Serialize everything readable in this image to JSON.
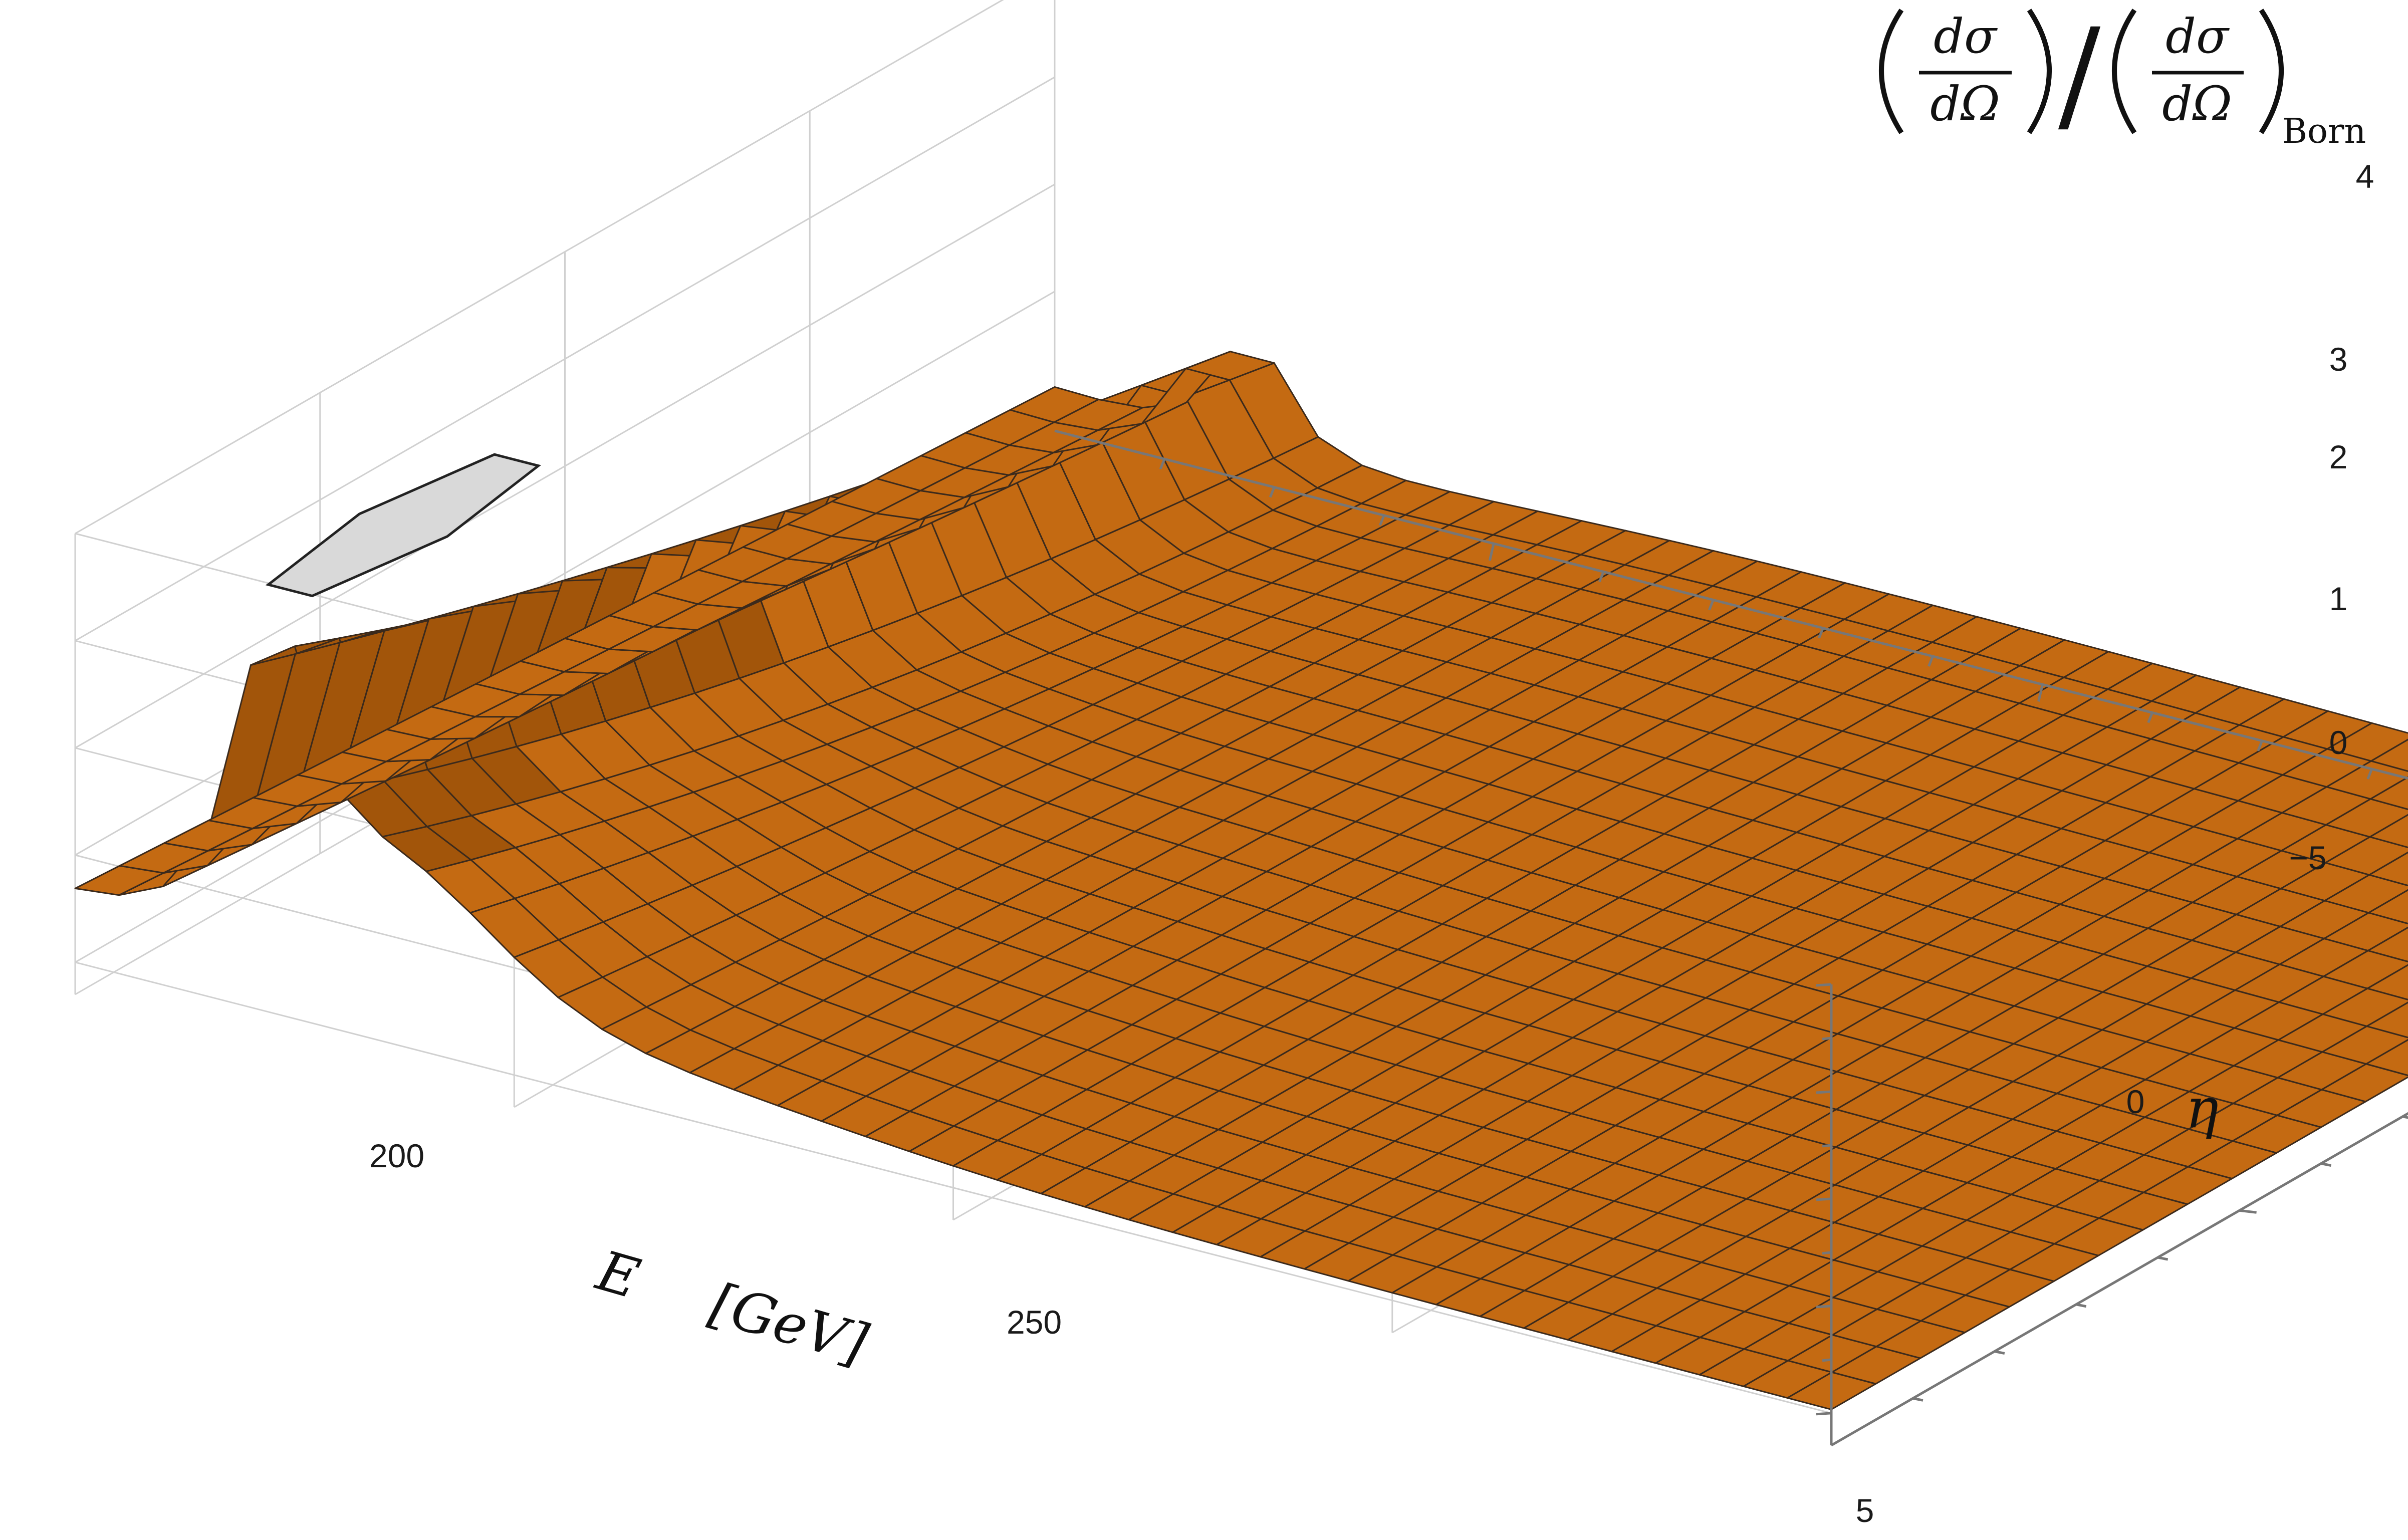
{
  "chart_data": {
    "type": "surface3d",
    "title": "",
    "xlabel": "E",
    "xlabel_unit": "[GeV]",
    "ylabel": "η",
    "zlabel": {
      "numerator": "dσ",
      "denominator": "dΩ",
      "subscript": "Born",
      "slash": "/"
    },
    "x_ticks": [
      "200",
      "250"
    ],
    "y_ticks": [
      "−5",
      "0",
      "5"
    ],
    "z_ticks": [
      "0",
      "1",
      "2",
      "3",
      "4"
    ],
    "xlim": [
      160,
      320
    ],
    "ylim": [
      -7,
      5
    ],
    "zlim": [
      -0.3,
      4
    ],
    "peak_E": 178,
    "peak_clip": 3.85,
    "colors": {
      "surface": "#c46a12",
      "surface_dark": "#a2550a",
      "top_cap": "#d9d9d9",
      "mesh": "#3b2a1c",
      "grid": "#d0d0d0",
      "axis": "#777777"
    },
    "grid": true
  }
}
